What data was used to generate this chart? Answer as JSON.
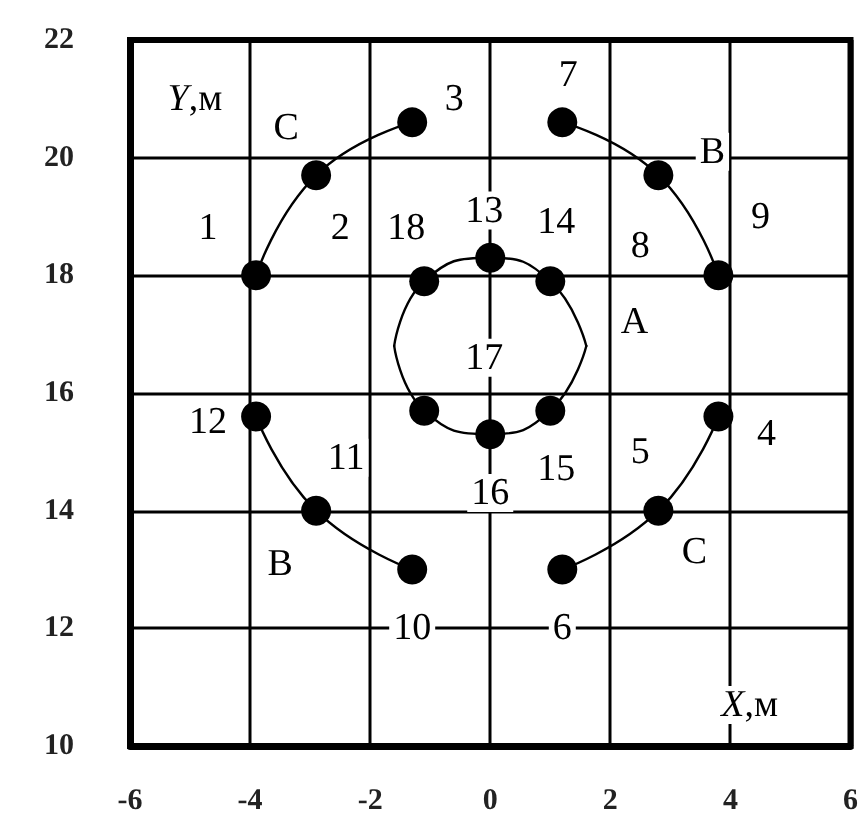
{
  "chart_data": {
    "type": "line",
    "xlabel": "X,м",
    "ylabel": "Y,м",
    "xlim": [
      -6,
      6
    ],
    "ylim": [
      10,
      22
    ],
    "xticks": [
      -6,
      -4,
      -2,
      0,
      2,
      4,
      6
    ],
    "yticks": [
      10,
      12,
      14,
      16,
      18,
      20,
      22
    ],
    "grid": true,
    "series": [
      {
        "type": "scatter",
        "color": "#000000",
        "marker": "circle",
        "x": [
          -3.9,
          -2.9,
          -1.3,
          3.8,
          2.8,
          1.2,
          1.2,
          2.8,
          3.8,
          -1.3,
          -2.9,
          -3.9,
          0,
          1.0,
          1.0,
          0,
          -1.1,
          -1.1
        ],
        "values": [
          18.0,
          19.7,
          20.6,
          15.6,
          14.0,
          13.0,
          20.6,
          19.7,
          18.0,
          13.0,
          14.0,
          15.6,
          18.3,
          17.9,
          15.7,
          15.3,
          15.7,
          17.9
        ]
      },
      {
        "type": "line",
        "color": "#000000",
        "marker": "none",
        "x": [
          -3.9,
          -2.9,
          -1.3
        ],
        "values": [
          18.0,
          19.7,
          20.6
        ]
      },
      {
        "type": "line",
        "color": "#000000",
        "marker": "none",
        "x": [
          1.2,
          2.8,
          3.8
        ],
        "values": [
          20.6,
          19.7,
          18.0
        ]
      },
      {
        "type": "line",
        "color": "#000000",
        "marker": "none",
        "x": [
          -3.9,
          -2.9,
          -1.3
        ],
        "values": [
          15.6,
          14.0,
          13.0
        ]
      },
      {
        "type": "line",
        "color": "#000000",
        "marker": "none",
        "x": [
          3.8,
          2.8,
          1.2
        ],
        "values": [
          15.6,
          14.0,
          13.0
        ]
      },
      {
        "type": "line",
        "color": "#000000",
        "marker": "none",
        "x": [
          -1.6,
          -1.1,
          0,
          1.0,
          1.6
        ],
        "values": [
          16.8,
          17.9,
          18.3,
          17.9,
          16.8
        ]
      },
      {
        "color": "#000000",
        "marker": "none",
        "x": [
          -1.6,
          -1.1,
          0,
          1.0,
          1.6
        ],
        "values": [
          16.8,
          15.7,
          15.3,
          15.7,
          16.8
        ]
      }
    ],
    "annotations": [
      {
        "text": "1",
        "x": -4.7,
        "y": 18.8
      },
      {
        "text": "2",
        "x": -2.5,
        "y": 18.8
      },
      {
        "text": "3",
        "x": -0.6,
        "y": 21.0
      },
      {
        "text": "4",
        "x": 4.6,
        "y": 15.3
      },
      {
        "text": "5",
        "x": 2.5,
        "y": 15.0
      },
      {
        "text": "6",
        "x": 1.2,
        "y": 12.0
      },
      {
        "text": "7",
        "x": 1.3,
        "y": 21.4
      },
      {
        "text": "8",
        "x": 2.5,
        "y": 18.5
      },
      {
        "text": "9",
        "x": 4.5,
        "y": 19.0
      },
      {
        "text": "10",
        "x": -1.3,
        "y": 12.0
      },
      {
        "text": "11",
        "x": -2.4,
        "y": 14.9
      },
      {
        "text": "12",
        "x": -4.7,
        "y": 15.5
      },
      {
        "text": "13",
        "x": -0.1,
        "y": 19.1
      },
      {
        "text": "14",
        "x": 1.1,
        "y": 18.9
      },
      {
        "text": "15",
        "x": 1.1,
        "y": 14.7
      },
      {
        "text": "16",
        "x": 0,
        "y": 14.3
      },
      {
        "text": "17",
        "x": -0.1,
        "y": 16.6
      },
      {
        "text": "18",
        "x": -1.4,
        "y": 18.8
      },
      {
        "text": "A",
        "x": 2.4,
        "y": 17.2
      },
      {
        "text": "B",
        "x": 3.7,
        "y": 20.1
      },
      {
        "text": "B",
        "x": -3.5,
        "y": 13.1
      },
      {
        "text": "C",
        "x": -3.4,
        "y": 20.5
      },
      {
        "text": "C",
        "x": 3.4,
        "y": 13.3
      }
    ]
  }
}
